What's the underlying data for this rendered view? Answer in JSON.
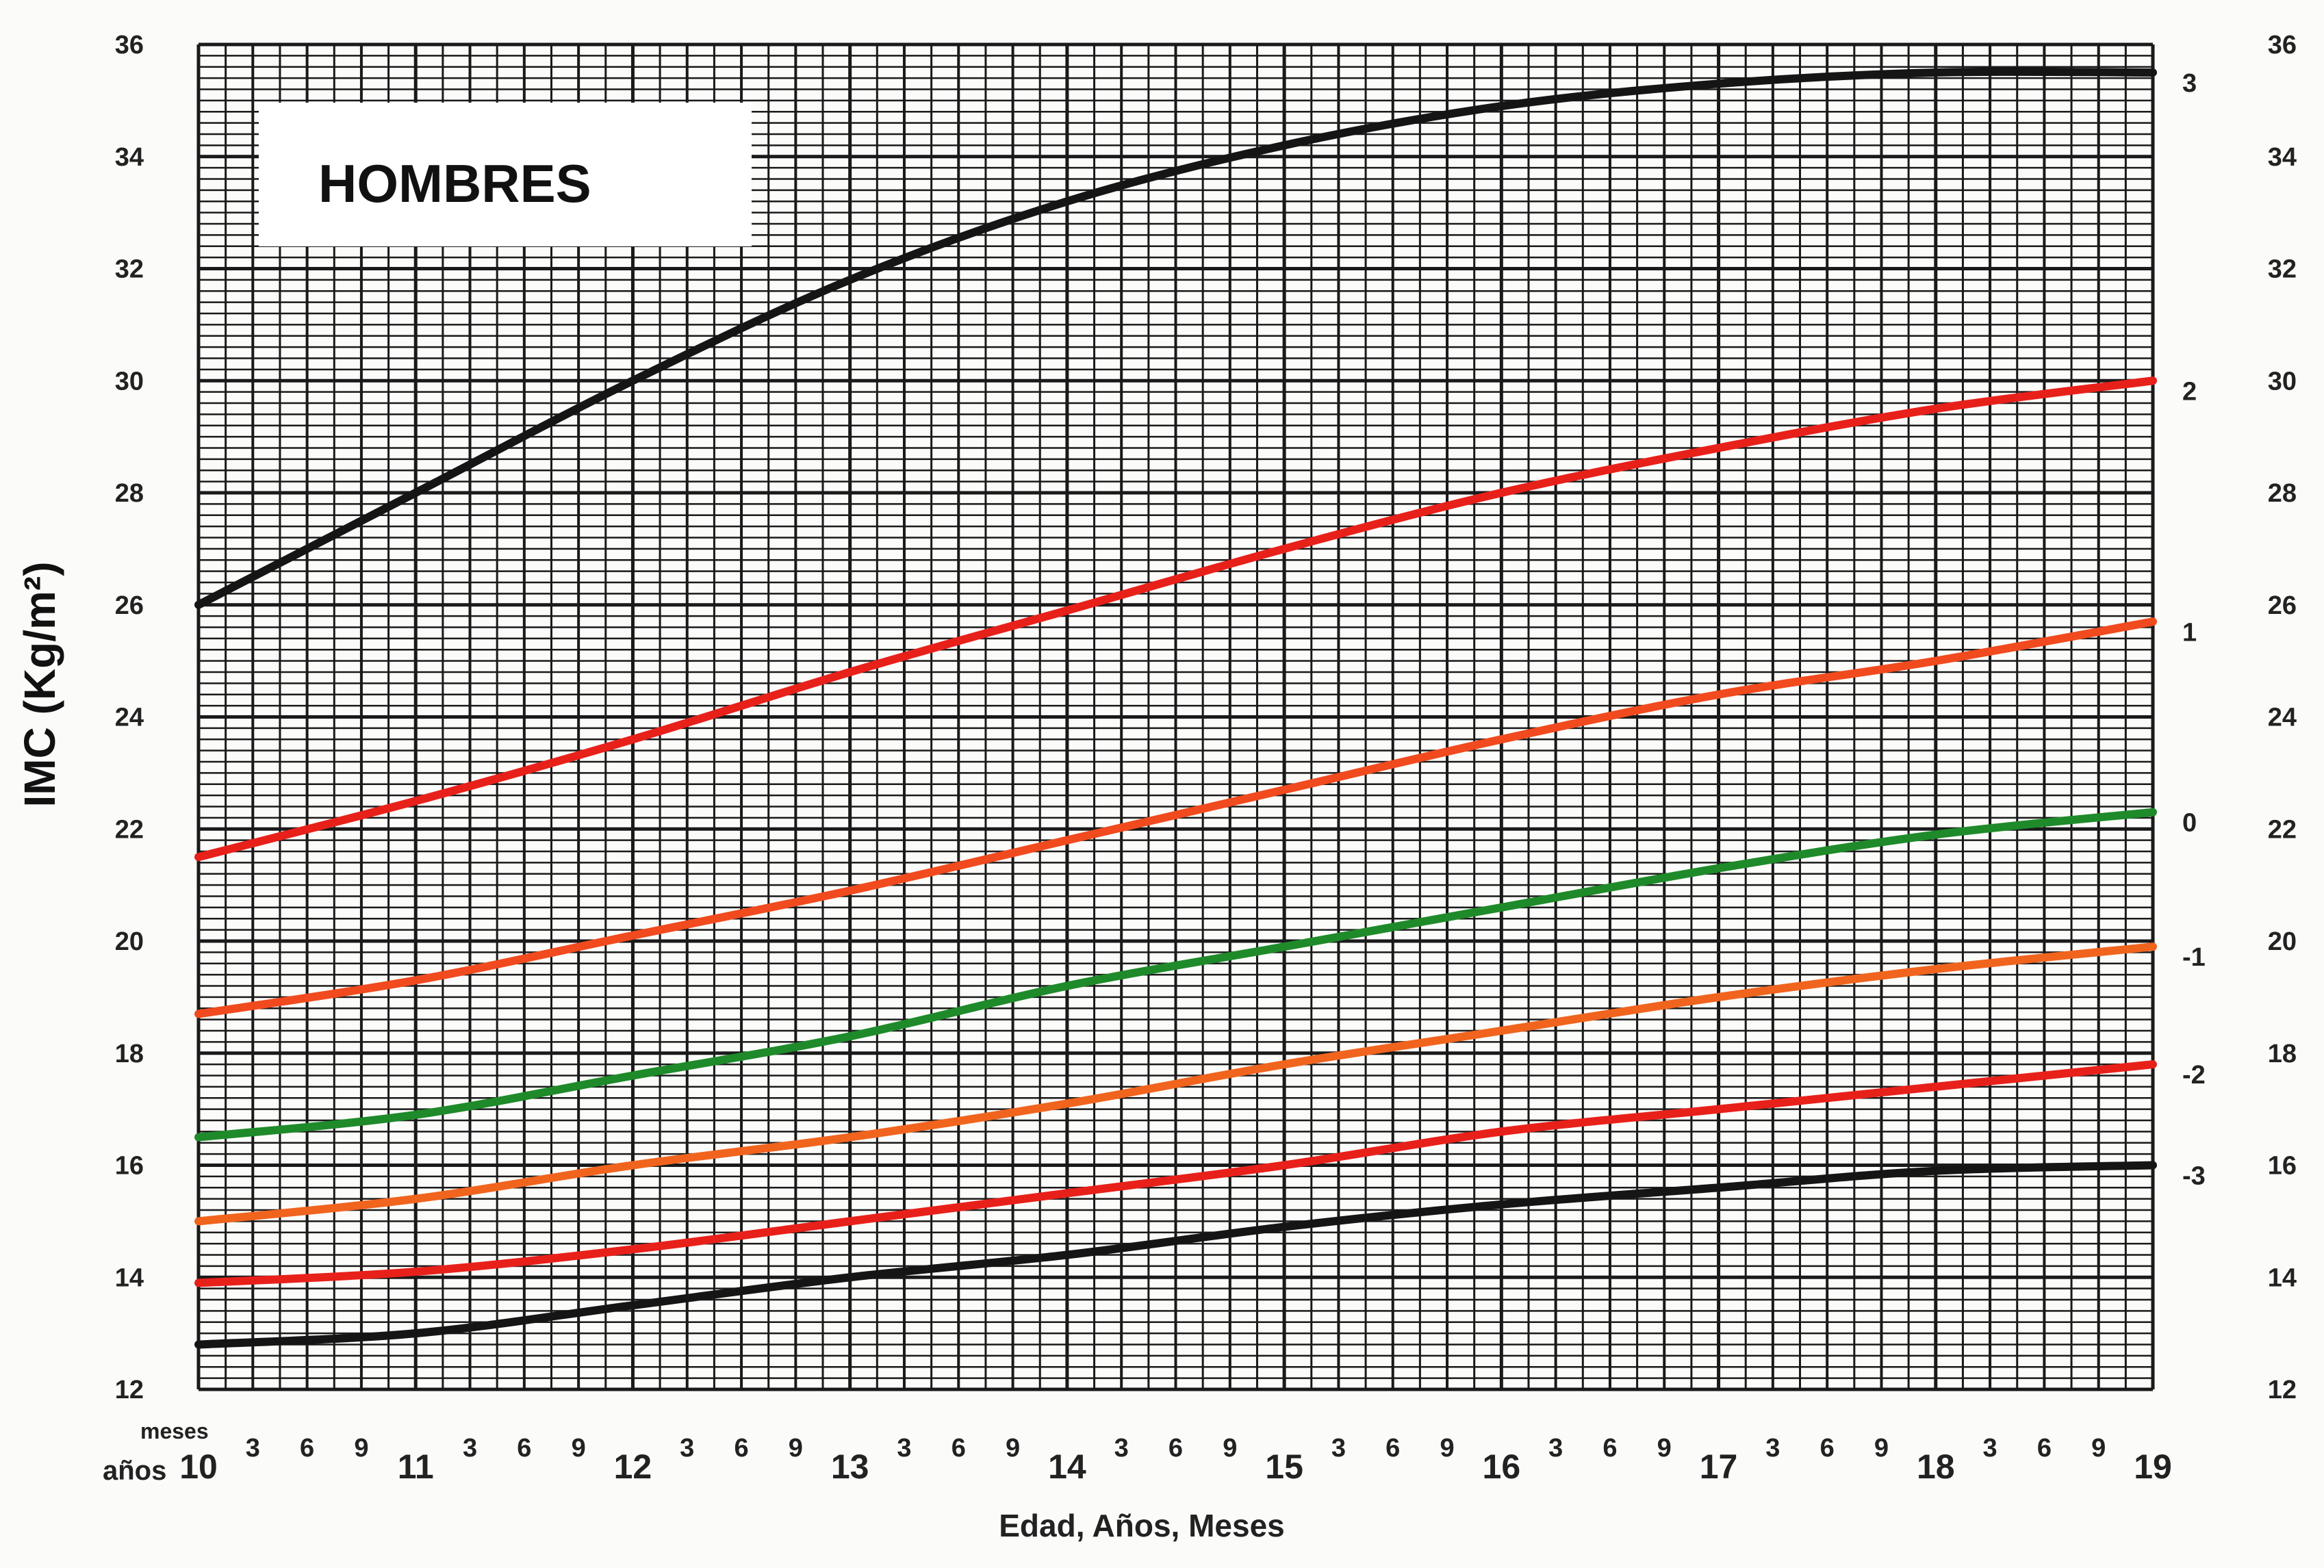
{
  "chart_data": {
    "type": "line",
    "title": "HOMBRES",
    "xlabel": "Edad, Años, Meses",
    "ylabel": "IMC (Kg/m²)",
    "x_row_labels": {
      "months": "meses",
      "years": "años"
    },
    "xlim": [
      10,
      19
    ],
    "ylim": [
      12,
      36
    ],
    "year_ticks": [
      "10",
      "11",
      "12",
      "13",
      "14",
      "15",
      "16",
      "17",
      "18",
      "19"
    ],
    "month_ticks": [
      "3",
      "6",
      "9"
    ],
    "y_ticks": [
      "12",
      "14",
      "16",
      "18",
      "20",
      "22",
      "24",
      "26",
      "28",
      "30",
      "32",
      "34",
      "36"
    ],
    "grid": true,
    "series": [
      {
        "name": "3",
        "color": "#151515",
        "x": [
          10,
          11,
          12,
          13,
          14,
          15,
          16,
          17,
          18,
          19
        ],
        "y": [
          26.0,
          28.0,
          30.0,
          31.8,
          33.2,
          34.2,
          34.9,
          35.3,
          35.5,
          35.5
        ]
      },
      {
        "name": "2",
        "color": "#e8201a",
        "x": [
          10,
          11,
          12,
          13,
          14,
          15,
          16,
          17,
          18,
          19
        ],
        "y": [
          21.5,
          22.5,
          23.6,
          24.8,
          25.9,
          27.0,
          28.0,
          28.8,
          29.5,
          30.0
        ]
      },
      {
        "name": "1",
        "color": "#f04a1e",
        "x": [
          10,
          11,
          12,
          13,
          14,
          15,
          16,
          17,
          18,
          19
        ],
        "y": [
          18.7,
          19.3,
          20.1,
          20.9,
          21.8,
          22.7,
          23.6,
          24.4,
          25.0,
          25.7
        ]
      },
      {
        "name": "0",
        "color": "#1e8a2a",
        "x": [
          10,
          11,
          12,
          13,
          14,
          15,
          16,
          17,
          18,
          19
        ],
        "y": [
          16.5,
          16.9,
          17.6,
          18.3,
          19.2,
          19.9,
          20.6,
          21.3,
          21.9,
          22.3
        ]
      },
      {
        "name": "-1",
        "color": "#f0641e",
        "x": [
          10,
          11,
          12,
          13,
          14,
          15,
          16,
          17,
          18,
          19
        ],
        "y": [
          15.0,
          15.4,
          16.0,
          16.5,
          17.1,
          17.8,
          18.4,
          19.0,
          19.5,
          19.9
        ]
      },
      {
        "name": "-2",
        "color": "#e8201a",
        "x": [
          10,
          11,
          12,
          13,
          14,
          15,
          16,
          17,
          18,
          19
        ],
        "y": [
          13.9,
          14.1,
          14.5,
          15.0,
          15.5,
          16.0,
          16.6,
          17.0,
          17.4,
          17.8
        ]
      },
      {
        "name": "-3",
        "color": "#151515",
        "x": [
          10,
          11,
          12,
          13,
          14,
          15,
          16,
          17,
          18,
          19
        ],
        "y": [
          12.8,
          13.0,
          13.5,
          14.0,
          14.4,
          14.9,
          15.3,
          15.6,
          15.9,
          16.0
        ]
      }
    ]
  }
}
